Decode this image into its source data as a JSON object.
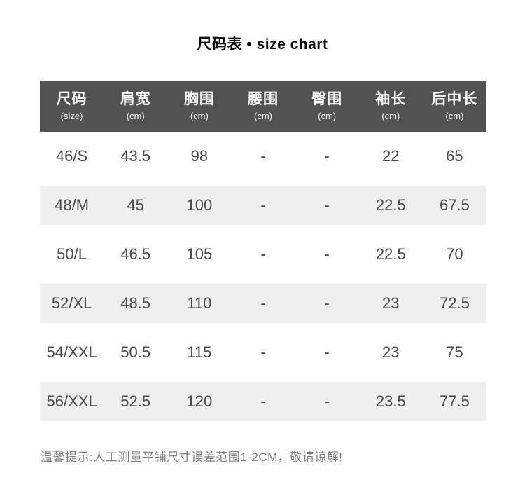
{
  "header": {
    "title": "尺码表 • size chart"
  },
  "chart_data": {
    "type": "table",
    "title": "尺码表 • size chart",
    "columns": [
      {
        "label": "尺码",
        "unit": "(size)"
      },
      {
        "label": "肩宽",
        "unit": "(cm)"
      },
      {
        "label": "胸围",
        "unit": "(cm)"
      },
      {
        "label": "腰围",
        "unit": "(cm)"
      },
      {
        "label": "臀围",
        "unit": "(cm)"
      },
      {
        "label": "袖长",
        "unit": "(cm)"
      },
      {
        "label": "后中长",
        "unit": "(cm)"
      }
    ],
    "rows": [
      [
        "46/S",
        "43.5",
        "98",
        "-",
        "-",
        "22",
        "65"
      ],
      [
        "48/M",
        "45",
        "100",
        "-",
        "-",
        "22.5",
        "67.5"
      ],
      [
        "50/L",
        "46.5",
        "105",
        "-",
        "-",
        "22.5",
        "70"
      ],
      [
        "52/XL",
        "48.5",
        "110",
        "-",
        "-",
        "23",
        "72.5"
      ],
      [
        "54/XXL",
        "50.5",
        "115",
        "-",
        "-",
        "23",
        "75"
      ],
      [
        "56/XXL",
        "52.5",
        "120",
        "-",
        "-",
        "23.5",
        "77.5"
      ]
    ],
    "note": "温馨提示:人工测量平铺尺寸误差范围1-2CM，敬请谅解!"
  },
  "colors": {
    "header_bg": "#525254",
    "header_text": "#ffffff",
    "row_alt_bg": "#efefef",
    "cell_text": "#4a4a4a",
    "title_text": "#0a0a0a",
    "note_text": "#7e7e7e",
    "page_bg": "#ffffff"
  }
}
